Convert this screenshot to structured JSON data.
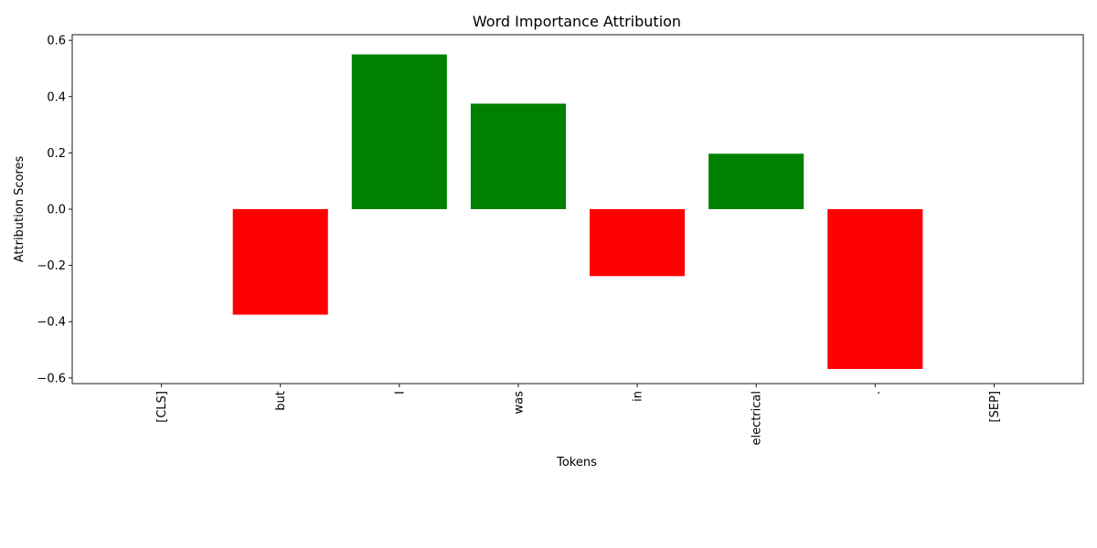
{
  "chart_data": {
    "type": "bar",
    "title": "Word Importance Attribution",
    "xlabel": "Tokens",
    "ylabel": "Attribution Scores",
    "categories": [
      "[CLS]",
      "but",
      "I",
      "was",
      "in",
      "electrical",
      ".",
      "[SEP]"
    ],
    "values": [
      0.0,
      -0.375,
      0.55,
      0.375,
      -0.238,
      0.197,
      -0.568,
      0.0
    ],
    "ylim": [
      -0.62,
      0.62
    ],
    "yticks": [
      -0.6,
      -0.4,
      -0.2,
      0.0,
      0.2,
      0.4,
      0.6
    ],
    "ytick_labels": [
      "−0.6",
      "−0.4",
      "−0.2",
      "0.0",
      "0.2",
      "0.4",
      "0.6"
    ],
    "grid": false,
    "colors": {
      "positive": "#008000",
      "negative": "#ff0000"
    }
  }
}
